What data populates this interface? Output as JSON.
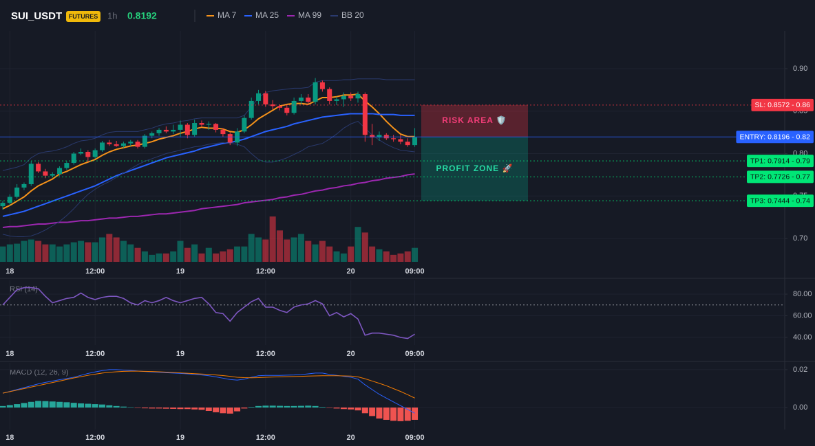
{
  "chart_data": [
    {
      "type": "candlestick",
      "title": "SUI_USDT",
      "badge": "FUTURES",
      "interval": "1h",
      "last_price": 0.8192,
      "categories": [
        null,
        "18",
        null,
        null,
        null,
        null,
        null,
        null,
        null,
        null,
        null,
        null,
        null,
        "12:00",
        null,
        null,
        null,
        null,
        null,
        null,
        null,
        null,
        null,
        null,
        null,
        "19",
        null,
        null,
        null,
        null,
        null,
        null,
        null,
        null,
        null,
        null,
        null,
        "12:00",
        null,
        null,
        null,
        null,
        null,
        null,
        null,
        null,
        null,
        null,
        null,
        "20",
        null,
        null,
        null,
        null,
        null,
        null,
        null,
        null,
        "09:00"
      ],
      "ohlc": [
        [
          0.738,
          0.744,
          0.734,
          0.742
        ],
        [
          0.742,
          0.752,
          0.739,
          0.749
        ],
        [
          0.749,
          0.764,
          0.747,
          0.76
        ],
        [
          0.76,
          0.766,
          0.757,
          0.764
        ],
        [
          0.764,
          0.791,
          0.762,
          0.788
        ],
        [
          0.788,
          0.79,
          0.777,
          0.779
        ],
        [
          0.779,
          0.782,
          0.771,
          0.774
        ],
        [
          0.774,
          0.778,
          0.772,
          0.776
        ],
        [
          0.776,
          0.785,
          0.774,
          0.783
        ],
        [
          0.783,
          0.791,
          0.781,
          0.789
        ],
        [
          0.789,
          0.802,
          0.787,
          0.8
        ],
        [
          0.8,
          0.806,
          0.798,
          0.802
        ],
        [
          0.802,
          0.804,
          0.79,
          0.796
        ],
        [
          0.796,
          0.806,
          0.794,
          0.804
        ],
        [
          0.804,
          0.815,
          0.802,
          0.813
        ],
        [
          0.813,
          0.816,
          0.809,
          0.811
        ],
        [
          0.811,
          0.815,
          0.808,
          0.809
        ],
        [
          0.809,
          0.814,
          0.807,
          0.812
        ],
        [
          0.812,
          0.816,
          0.809,
          0.814
        ],
        [
          0.814,
          0.816,
          0.806,
          0.808
        ],
        [
          0.808,
          0.823,
          0.806,
          0.821
        ],
        [
          0.821,
          0.826,
          0.818,
          0.824
        ],
        [
          0.824,
          0.83,
          0.821,
          0.828
        ],
        [
          0.828,
          0.832,
          0.824,
          0.826
        ],
        [
          0.826,
          0.834,
          0.823,
          0.828
        ],
        [
          0.828,
          0.839,
          0.82,
          0.834
        ],
        [
          0.834,
          0.836,
          0.818,
          0.822
        ],
        [
          0.822,
          0.84,
          0.82,
          0.836
        ],
        [
          0.836,
          0.839,
          0.832,
          0.834
        ],
        [
          0.834,
          0.838,
          0.828,
          0.835
        ],
        [
          0.835,
          0.836,
          0.825,
          0.828
        ],
        [
          0.828,
          0.83,
          0.82,
          0.823
        ],
        [
          0.823,
          0.825,
          0.81,
          0.813
        ],
        [
          0.813,
          0.83,
          0.809,
          0.826
        ],
        [
          0.826,
          0.845,
          0.824,
          0.842
        ],
        [
          0.842,
          0.866,
          0.84,
          0.862
        ],
        [
          0.862,
          0.875,
          0.858,
          0.871
        ],
        [
          0.871,
          0.874,
          0.855,
          0.858
        ],
        [
          0.858,
          0.863,
          0.852,
          0.856
        ],
        [
          0.856,
          0.858,
          0.851,
          0.854
        ],
        [
          0.854,
          0.857,
          0.845,
          0.848
        ],
        [
          0.848,
          0.866,
          0.846,
          0.862
        ],
        [
          0.862,
          0.87,
          0.858,
          0.866
        ],
        [
          0.866,
          0.87,
          0.858,
          0.861
        ],
        [
          0.861,
          0.889,
          0.858,
          0.884
        ],
        [
          0.884,
          0.886,
          0.873,
          0.876
        ],
        [
          0.876,
          0.878,
          0.858,
          0.862
        ],
        [
          0.862,
          0.867,
          0.857,
          0.864
        ],
        [
          0.864,
          0.872,
          0.855,
          0.868
        ],
        [
          0.868,
          0.872,
          0.862,
          0.865
        ],
        [
          0.865,
          0.873,
          0.86,
          0.87
        ],
        [
          0.87,
          0.872,
          0.814,
          0.822
        ],
        [
          0.822,
          0.835,
          0.81,
          0.819
        ],
        [
          0.819,
          0.826,
          0.815,
          0.822
        ],
        [
          0.822,
          0.824,
          0.816,
          0.818
        ],
        [
          0.818,
          0.822,
          0.814,
          0.817
        ],
        [
          0.817,
          0.822,
          0.811,
          0.814
        ],
        [
          0.814,
          0.818,
          0.808,
          0.81
        ],
        [
          0.81,
          0.83,
          0.808,
          0.8192
        ]
      ],
      "volume": [
        22,
        25,
        26,
        30,
        32,
        30,
        25,
        25,
        22,
        25,
        28,
        30,
        28,
        28,
        35,
        40,
        35,
        30,
        25,
        20,
        15,
        10,
        12,
        12,
        15,
        30,
        20,
        25,
        12,
        20,
        12,
        15,
        18,
        22,
        22,
        40,
        35,
        32,
        65,
        45,
        32,
        35,
        40,
        30,
        25,
        30,
        22,
        15,
        12,
        22,
        50,
        42,
        22,
        18,
        15,
        10,
        12,
        15,
        20
      ],
      "up_color": "#089981",
      "down_color": "#f23645",
      "series": [
        {
          "name": "MA 7",
          "color": "#f7931a",
          "values": [
            0.735,
            0.739,
            0.744,
            0.749,
            0.756,
            0.762,
            0.766,
            0.77,
            0.776,
            0.779,
            0.783,
            0.787,
            0.79,
            0.793,
            0.798,
            0.802,
            0.805,
            0.807,
            0.809,
            0.81,
            0.812,
            0.814,
            0.817,
            0.819,
            0.821,
            0.824,
            0.826,
            0.829,
            0.831,
            0.83,
            0.83,
            0.829,
            0.826,
            0.825,
            0.828,
            0.834,
            0.841,
            0.846,
            0.851,
            0.856,
            0.858,
            0.859,
            0.859,
            0.858,
            0.862,
            0.866,
            0.866,
            0.867,
            0.869,
            0.869,
            0.87,
            0.862,
            0.855,
            0.847,
            0.838,
            0.83,
            0.823,
            0.82,
            0.82
          ]
        },
        {
          "name": "MA 25",
          "color": "#2962ff",
          "values": [
            0.726,
            0.728,
            0.73,
            0.732,
            0.735,
            0.738,
            0.741,
            0.744,
            0.747,
            0.75,
            0.753,
            0.756,
            0.759,
            0.762,
            0.766,
            0.77,
            0.774,
            0.777,
            0.78,
            0.783,
            0.786,
            0.789,
            0.792,
            0.795,
            0.797,
            0.799,
            0.801,
            0.803,
            0.806,
            0.808,
            0.81,
            0.812,
            0.813,
            0.815,
            0.817,
            0.82,
            0.823,
            0.826,
            0.828,
            0.83,
            0.832,
            0.835,
            0.837,
            0.839,
            0.841,
            0.843,
            0.844,
            0.845,
            0.846,
            0.847,
            0.847,
            0.847,
            0.847,
            0.846,
            0.846,
            0.846,
            0.845,
            0.845,
            0.845
          ]
        },
        {
          "name": "MA 99",
          "color": "#9c27b0",
          "values": [
            0.713,
            0.714,
            0.714,
            0.715,
            0.716,
            0.717,
            0.717,
            0.718,
            0.719,
            0.719,
            0.72,
            0.721,
            0.721,
            0.722,
            0.723,
            0.724,
            0.724,
            0.725,
            0.726,
            0.726,
            0.727,
            0.728,
            0.729,
            0.729,
            0.73,
            0.731,
            0.732,
            0.733,
            0.735,
            0.736,
            0.737,
            0.738,
            0.739,
            0.74,
            0.742,
            0.743,
            0.744,
            0.745,
            0.746,
            0.748,
            0.749,
            0.751,
            0.752,
            0.754,
            0.756,
            0.757,
            0.759,
            0.76,
            0.762,
            0.763,
            0.765,
            0.766,
            0.768,
            0.769,
            0.771,
            0.772,
            0.773,
            0.775,
            0.776
          ]
        },
        {
          "name": "BB 20",
          "color": "#2a3a6e",
          "upper": [
            0.78,
            0.782,
            0.784,
            0.787,
            0.795,
            0.8,
            0.802,
            0.803,
            0.805,
            0.808,
            0.812,
            0.815,
            0.816,
            0.818,
            0.822,
            0.825,
            0.826,
            0.826,
            0.826,
            0.826,
            0.828,
            0.83,
            0.833,
            0.835,
            0.836,
            0.838,
            0.839,
            0.841,
            0.842,
            0.842,
            0.842,
            0.842,
            0.842,
            0.842,
            0.845,
            0.855,
            0.866,
            0.872,
            0.874,
            0.875,
            0.876,
            0.877,
            0.877,
            0.878,
            0.884,
            0.886,
            0.886,
            0.886,
            0.887,
            0.887,
            0.888,
            0.888,
            0.888,
            0.888,
            0.887,
            0.887,
            0.887,
            0.887,
            0.887
          ],
          "lower": [
            0.705,
            0.703,
            0.702,
            0.702,
            0.703,
            0.706,
            0.71,
            0.715,
            0.72,
            0.727,
            0.735,
            0.744,
            0.752,
            0.758,
            0.763,
            0.767,
            0.772,
            0.777,
            0.782,
            0.787,
            0.791,
            0.794,
            0.797,
            0.8,
            0.802,
            0.804,
            0.806,
            0.808,
            0.809,
            0.811,
            0.812,
            0.813,
            0.812,
            0.811,
            0.808,
            0.8,
            0.793,
            0.79,
            0.79,
            0.792,
            0.795,
            0.799,
            0.803,
            0.808,
            0.81,
            0.812,
            0.817,
            0.823,
            0.83,
            0.835,
            0.838,
            0.83,
            0.822,
            0.816,
            0.811,
            0.807,
            0.804,
            0.803,
            0.802
          ]
        }
      ],
      "ylim": [
        0.6725,
        0.9445
      ],
      "yticks": [
        {
          "value": 0.7,
          "label": "0.70"
        },
        0.75,
        {
          "value": 0.8,
          "label": "0.80"
        },
        0.85,
        {
          "value": 0.9,
          "label": "0.90"
        }
      ],
      "grid": true,
      "levels": [
        {
          "value": 0.8572,
          "label": "SL: 0.8572 - 0.86",
          "color": "#f23645",
          "style": "dotted"
        },
        {
          "value": 0.8196,
          "label": "ENTRY: 0.8196 - 0.82",
          "color": "#2962ff",
          "style": "solid"
        },
        {
          "value": 0.7914,
          "label": "TP1: 0.7914 - 0.79",
          "color": "#00e676",
          "style": "dotted"
        },
        {
          "value": 0.7726,
          "label": "TP2: 0.7726 - 0.77",
          "color": "#00e676",
          "style": "dotted"
        },
        {
          "value": 0.7444,
          "label": "TP3: 0.7444 - 0.74",
          "color": "#00e676",
          "style": "dotted"
        }
      ],
      "zones": [
        {
          "label": "RISK AREA 🛡️",
          "range": [
            0.8572,
            0.8196
          ],
          "color": "#f23645",
          "text_color": "#f23d78"
        },
        {
          "label": "PROFIT ZONE 🚀",
          "range": [
            0.8196,
            0.7444
          ],
          "color": "#089981",
          "text_color": "#26d9a3"
        }
      ]
    },
    {
      "type": "line",
      "title": "RSI (14)",
      "color": "#7e57c2",
      "values": [
        70,
        77,
        84,
        86,
        86,
        85,
        78,
        72,
        74,
        76,
        77,
        81,
        77,
        75,
        77,
        78,
        78,
        76,
        72,
        70,
        74,
        72,
        74,
        77,
        74,
        72,
        74,
        76,
        77,
        71,
        63,
        62,
        55,
        63,
        68,
        73,
        76,
        68,
        68,
        65,
        63,
        68,
        70,
        71,
        74,
        71,
        60,
        63,
        59,
        62,
        57,
        42,
        44,
        44,
        43,
        42,
        40,
        39,
        43
      ],
      "ylim": [
        33,
        92.7
      ],
      "yticks": [
        {
          "value": 40,
          "label": "40.00"
        },
        {
          "value": 60,
          "label": "60.00"
        },
        {
          "value": 80,
          "label": "80.00"
        }
      ],
      "reference_line": 70
    },
    {
      "type": "macd",
      "title": "MACD (12, 26, 9)",
      "series": [
        {
          "color": "#2962ff",
          "values": [
            0.0076,
            0.0085,
            0.0095,
            0.0105,
            0.0115,
            0.0125,
            0.0133,
            0.014,
            0.0147,
            0.0153,
            0.016,
            0.017,
            0.018,
            0.0188,
            0.0195,
            0.02,
            0.02,
            0.0198,
            0.0196,
            0.0193,
            0.019,
            0.0188,
            0.0186,
            0.0184,
            0.0182,
            0.018,
            0.0178,
            0.0175,
            0.0172,
            0.0168,
            0.0162,
            0.0155,
            0.0148,
            0.0145,
            0.015,
            0.016,
            0.0168,
            0.017,
            0.017,
            0.017,
            0.0171,
            0.0172,
            0.0174,
            0.0178,
            0.0182,
            0.0182,
            0.0175,
            0.017,
            0.0165,
            0.016,
            0.015,
            0.012,
            0.0095,
            0.007,
            0.005,
            0.003,
            0.001,
            -0.001,
            -0.003
          ]
        },
        {
          "color": "#f57c00",
          "values": [
            0.0076,
            0.0084,
            0.0092,
            0.01,
            0.0108,
            0.0116,
            0.0124,
            0.0132,
            0.014,
            0.0148,
            0.0156,
            0.0163,
            0.017,
            0.0176,
            0.0182,
            0.0186,
            0.0189,
            0.0191,
            0.0192,
            0.0192,
            0.0191,
            0.019,
            0.0189,
            0.0187,
            0.0185,
            0.0183,
            0.0181,
            0.0179,
            0.0177,
            0.0175,
            0.0172,
            0.0169,
            0.0165,
            0.016,
            0.0158,
            0.0157,
            0.0158,
            0.016,
            0.0161,
            0.0162,
            0.0163,
            0.0164,
            0.0165,
            0.0166,
            0.0167,
            0.0168,
            0.0168,
            0.0168,
            0.0167,
            0.0166,
            0.0162,
            0.0152,
            0.014,
            0.0128,
            0.0115,
            0.01,
            0.0085,
            0.0068,
            0.005
          ]
        }
      ],
      "histogram": [
        0.0008,
        0.0013,
        0.0018,
        0.0024,
        0.003,
        0.0035,
        0.0034,
        0.0032,
        0.003,
        0.0028,
        0.0025,
        0.0022,
        0.002,
        0.0018,
        0.0016,
        0.0012,
        0.0008,
        0.0005,
        0.0002,
        -0.0002,
        -0.0004,
        -0.0005,
        -0.0005,
        -0.0006,
        -0.0007,
        -0.0008,
        -0.0008,
        -0.001,
        -0.0012,
        -0.0018,
        -0.0025,
        -0.003,
        -0.0032,
        -0.002,
        -0.0005,
        0.0003,
        0.0008,
        0.001,
        0.001,
        0.0009,
        0.0008,
        0.0008,
        0.0009,
        0.001,
        0.0008,
        0.0003,
        -0.0002,
        -0.0005,
        -0.0008,
        -0.001,
        -0.0015,
        -0.003,
        -0.0045,
        -0.0058,
        -0.0065,
        -0.007,
        -0.0072,
        -0.007,
        -0.0065
      ],
      "up_color": "#26a69a",
      "down_color": "#ef5350",
      "ylim": [
        -0.0116,
        0.0236
      ],
      "yticks": [
        {
          "value": 0,
          "label": "0.00"
        },
        0.02
      ]
    }
  ]
}
